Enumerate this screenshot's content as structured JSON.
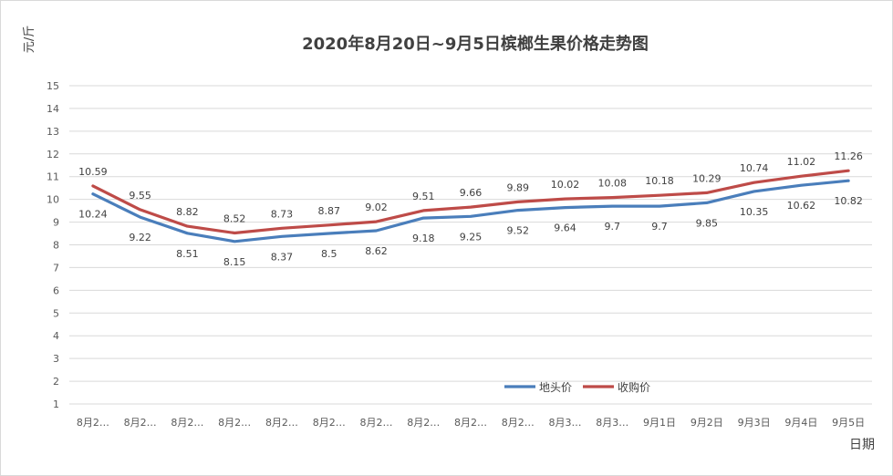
{
  "chart_data": {
    "type": "line",
    "title": "2020年8月20日~9月5日槟榔生果价格走势图",
    "ylabel": "元/斤",
    "xlabel": "日期",
    "ylim": [
      1,
      15
    ],
    "ytick_step": 1,
    "grid": true,
    "legend_position": "bottom-right",
    "categories": [
      "8月2…",
      "8月2…",
      "8月2…",
      "8月2…",
      "8月2…",
      "8月2…",
      "8月2…",
      "8月2…",
      "8月2…",
      "8月2…",
      "8月3…",
      "8月3…",
      "9月1日",
      "9月2日",
      "9月3日",
      "9月4日",
      "9月5日"
    ],
    "series": [
      {
        "name": "地头价",
        "color": "#4a7ebb",
        "values": [
          10.24,
          9.22,
          8.51,
          8.15,
          8.37,
          8.5,
          8.62,
          9.18,
          9.25,
          9.52,
          9.64,
          9.7,
          9.7,
          9.85,
          10.35,
          10.62,
          10.82
        ]
      },
      {
        "name": "收购价",
        "color": "#be4b48",
        "values": [
          10.59,
          9.55,
          8.82,
          8.52,
          8.73,
          8.87,
          9.02,
          9.51,
          9.66,
          9.89,
          10.02,
          10.08,
          10.18,
          10.29,
          10.74,
          11.02,
          11.26
        ]
      }
    ]
  }
}
